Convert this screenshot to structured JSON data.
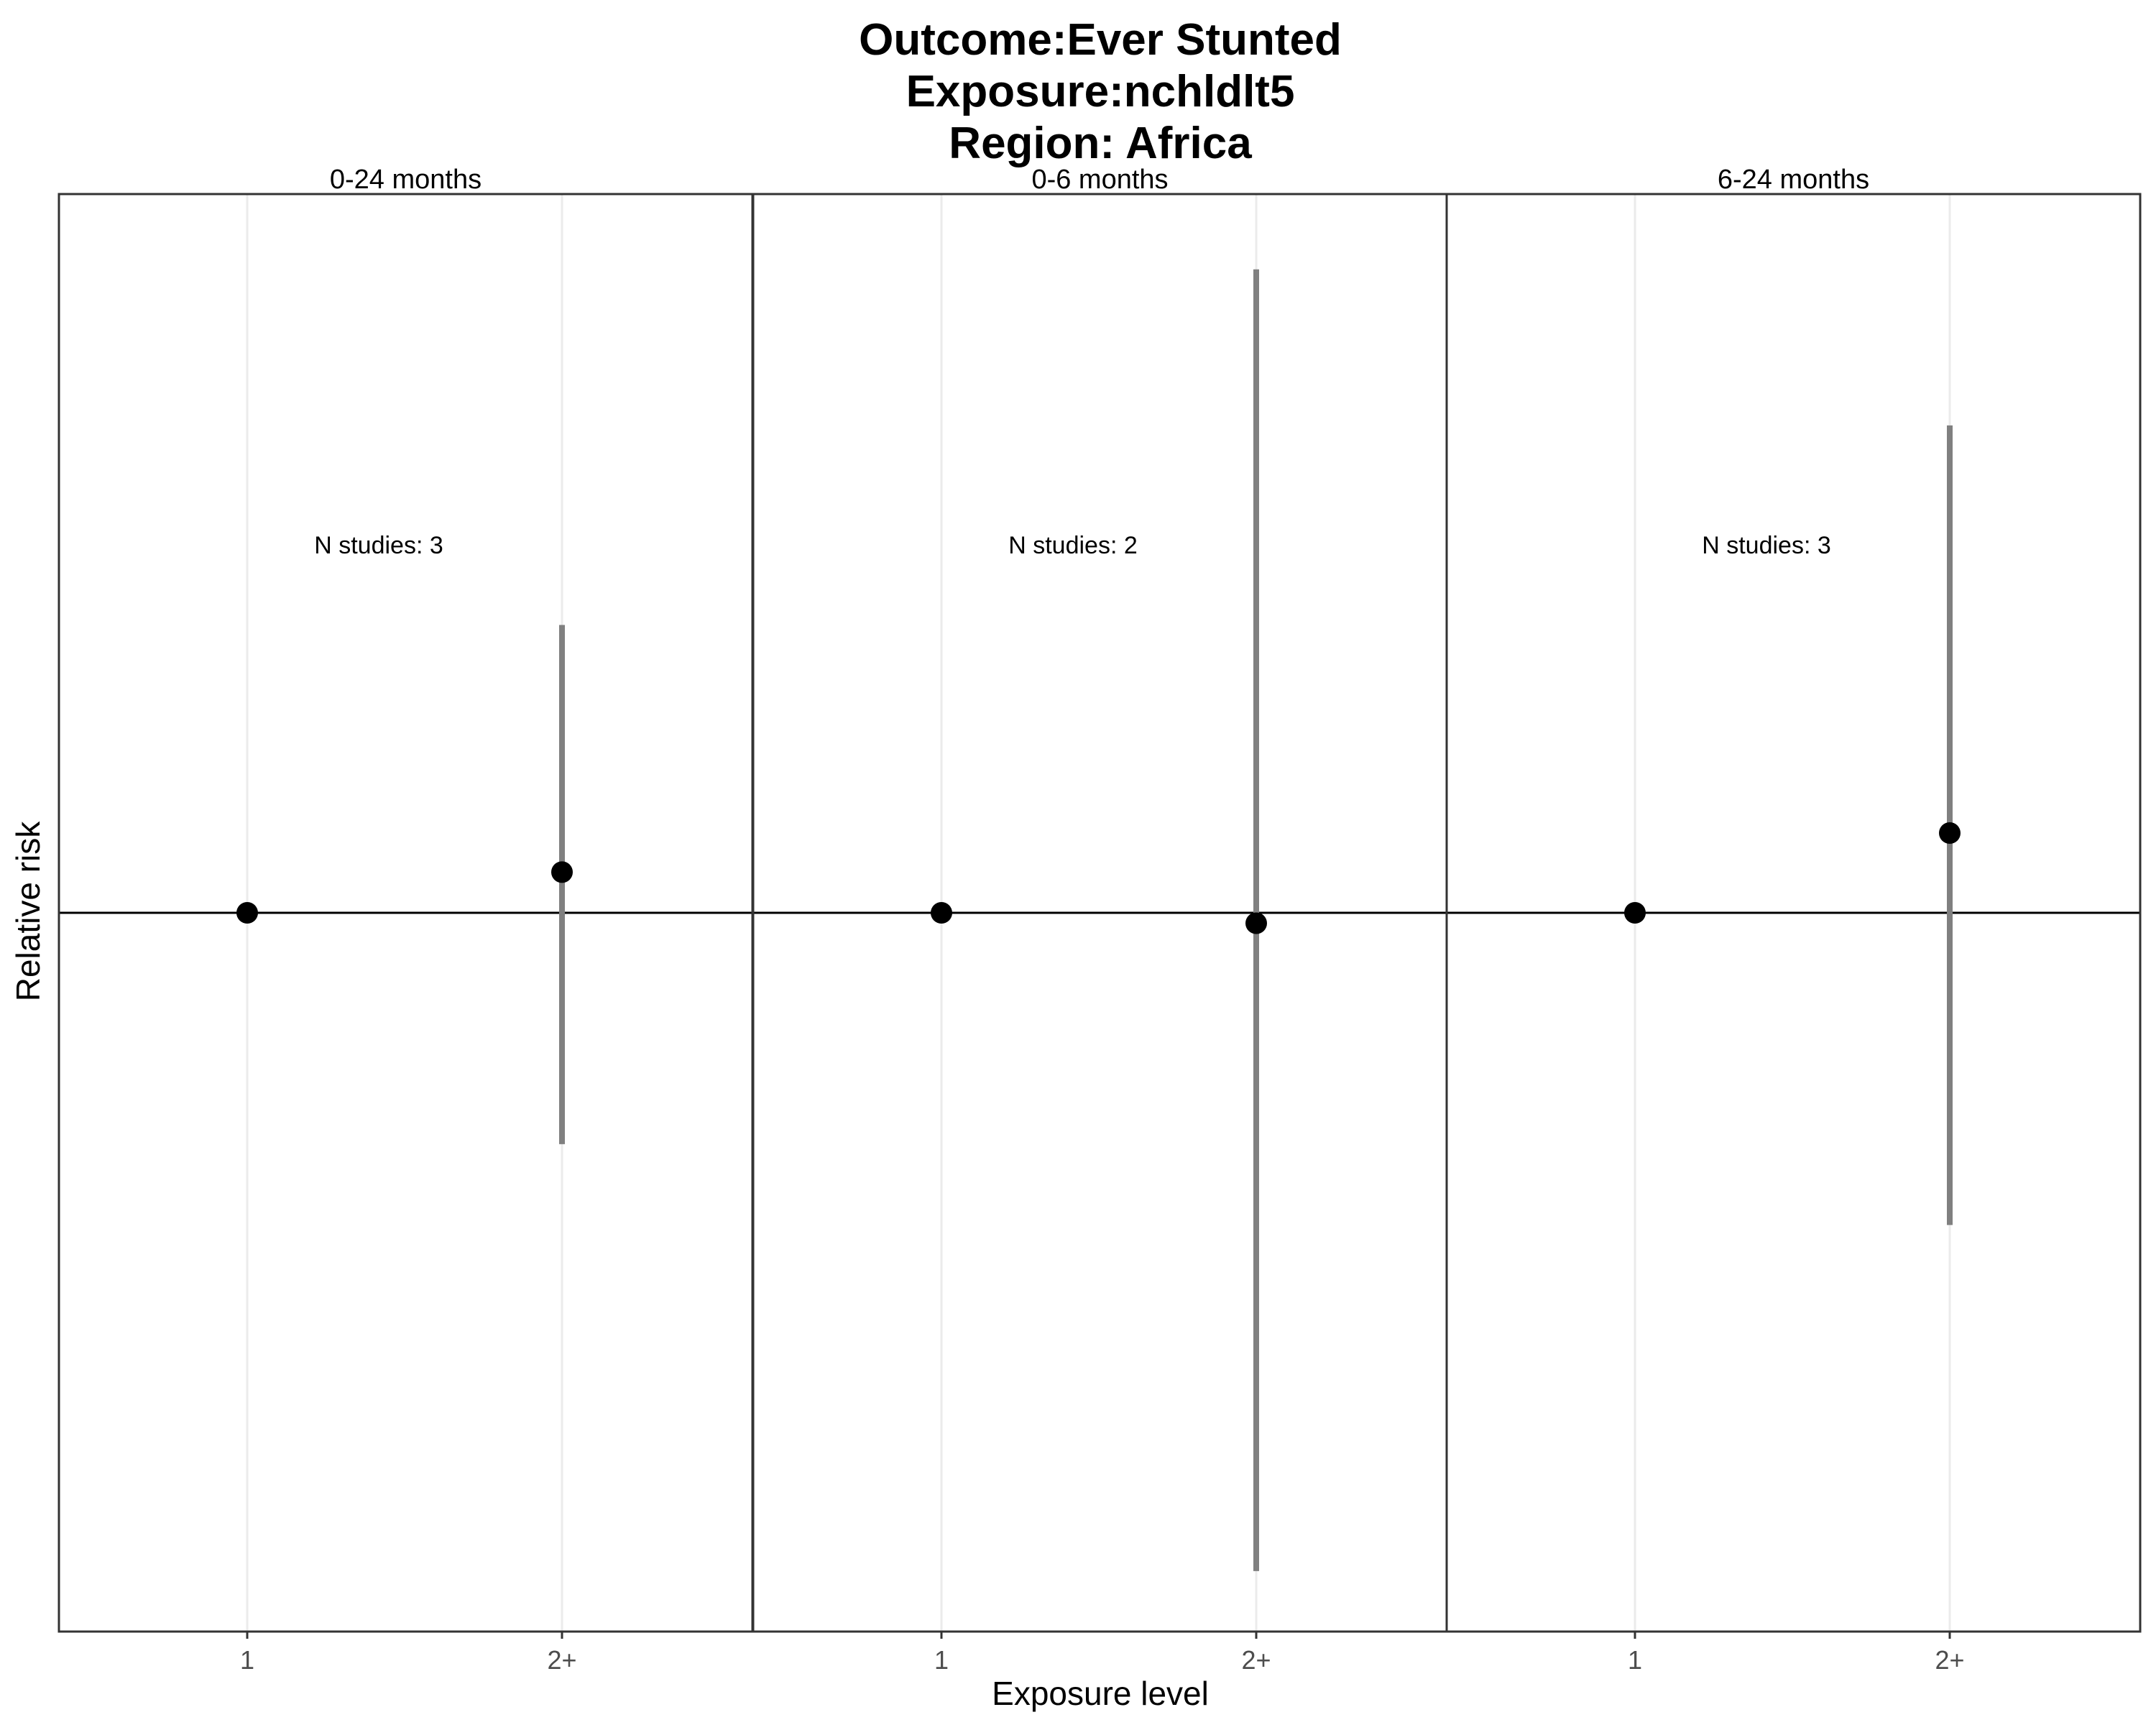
{
  "chart_data": {
    "type": "scatter",
    "title_lines": [
      "Outcome:Ever Stunted",
      "Exposure:nchldlt5",
      "Region: Africa"
    ],
    "xlabel": "Exposure level",
    "ylabel": "Relative risk",
    "categories": [
      "1",
      "2+"
    ],
    "reference_line": 1,
    "y_scale": "log",
    "ylim": [
      0.5,
      2.0
    ],
    "grid": "vertical major gridlines only",
    "facets": [
      {
        "label": "0-24 months",
        "annotation": "N studies: 3",
        "points": [
          {
            "x": "1",
            "rr": 1.0,
            "lower": null,
            "upper": null
          },
          {
            "x": "2+",
            "rr": 1.04,
            "lower": 0.8,
            "upper": 1.32
          }
        ]
      },
      {
        "label": "0-6 months",
        "annotation": "N studies: 2",
        "points": [
          {
            "x": "1",
            "rr": 1.0,
            "lower": null,
            "upper": null
          },
          {
            "x": "2+",
            "rr": 0.99,
            "lower": 0.53,
            "upper": 1.86
          }
        ]
      },
      {
        "label": "6-24 months",
        "annotation": "N studies: 3",
        "points": [
          {
            "x": "1",
            "rr": 1.0,
            "lower": null,
            "upper": null
          },
          {
            "x": "2+",
            "rr": 1.08,
            "lower": 0.74,
            "upper": 1.6
          }
        ]
      }
    ],
    "colors": {
      "point": "#000000",
      "error_bar": "#808080",
      "reference_line": "#000000",
      "gridline": "#ebebeb",
      "panel_border": "#333333"
    }
  }
}
